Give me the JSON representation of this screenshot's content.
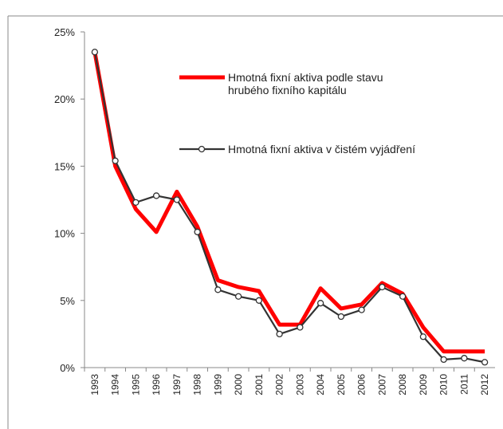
{
  "chart_data": {
    "type": "line",
    "categories": [
      "1993",
      "1994",
      "1995",
      "1996",
      "1997",
      "1998",
      "1999",
      "2000",
      "2001",
      "2002",
      "2003",
      "2004",
      "2005",
      "2006",
      "2007",
      "2008",
      "2009",
      "2010",
      "2011",
      "2012"
    ],
    "series": [
      {
        "name": "Hmotná fixní aktiva podle stavu hrubého fixního kapitálu",
        "color": "#ff0000",
        "values": [
          23.5,
          15,
          11.8,
          10.1,
          13.1,
          10.5,
          6.5,
          6.0,
          5.7,
          3.2,
          3.2,
          5.9,
          4.4,
          4.7,
          6.3,
          5.5,
          3.0,
          1.2,
          1.2,
          1.2
        ]
      },
      {
        "name": "Hmotná fixní aktiva v čistém vyjádření",
        "color": "#333333",
        "values": [
          23.5,
          15.4,
          12.3,
          12.8,
          12.5,
          10.1,
          5.8,
          5.3,
          5.0,
          2.5,
          3.0,
          4.8,
          3.8,
          4.3,
          6.0,
          5.3,
          2.3,
          0.6,
          0.7,
          0.4
        ]
      }
    ],
    "ylim": [
      0,
      25
    ],
    "yticks": [
      {
        "value": 0,
        "label": "0%"
      },
      {
        "value": 5,
        "label": "5%"
      },
      {
        "value": 10,
        "label": "10%"
      },
      {
        "value": 15,
        "label": "15%"
      },
      {
        "value": 20,
        "label": "20%"
      },
      {
        "value": 25,
        "label": "25%"
      }
    ]
  }
}
